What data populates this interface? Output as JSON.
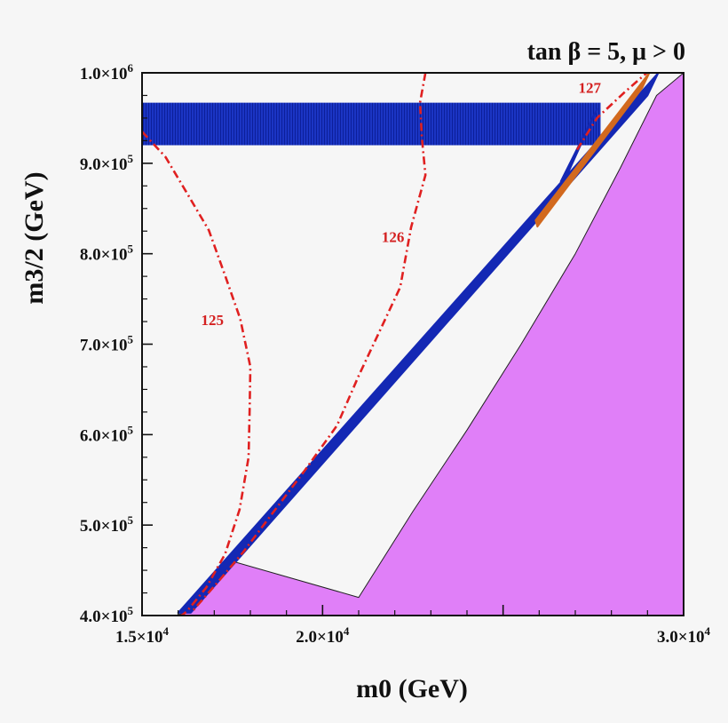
{
  "chart_data": {
    "type": "contour",
    "title": "tan β = 5,  μ > 0",
    "xlabel": "m0 (GeV)",
    "ylabel": "m3/2 (GeV)",
    "xlim": [
      15000,
      30000
    ],
    "ylim": [
      400000,
      1000000
    ],
    "x_ticks": [
      15000,
      20000,
      25000,
      30000
    ],
    "x_tick_labels": [
      "1.5×10^4",
      "2.0×10^4",
      "",
      "3.0×10^4"
    ],
    "y_ticks": [
      400000,
      500000,
      600000,
      700000,
      800000,
      900000,
      1000000
    ],
    "y_tick_labels": [
      "4.0×10^5",
      "5.0×10^5",
      "6.0×10^5",
      "7.0×10^5",
      "8.0×10^5",
      "9.0×10^5",
      "1.0×10^6"
    ],
    "colors": {
      "excluded_region": "#e07ff8",
      "blue_region": "#1428b4",
      "higgs_contour": "#e02020",
      "orange_strip": "#d2691e",
      "background": "#f6f6f6"
    },
    "regions": [
      {
        "name": "excluded",
        "polygon": [
          [
            15950,
            400000
          ],
          [
            30000,
            400000
          ],
          [
            30000,
            1000000
          ],
          [
            29250,
            975000
          ],
          [
            28250,
            895000
          ],
          [
            27000,
            800000
          ],
          [
            25500,
            700000
          ],
          [
            24000,
            605000
          ],
          [
            22500,
            515000
          ],
          [
            21000,
            420000
          ],
          [
            17500,
            460000
          ],
          [
            16800,
            425000
          ],
          [
            16300,
            405000
          ]
        ]
      },
      {
        "name": "blue-band",
        "polygon": [
          [
            15000,
            920000
          ],
          [
            27700,
            920000
          ],
          [
            27700,
            967000
          ],
          [
            15000,
            967000
          ]
        ]
      },
      {
        "name": "blue-strip",
        "polygon": [
          [
            16000,
            403000
          ],
          [
            29300,
            1000000
          ],
          [
            29000,
            975000
          ],
          [
            16350,
            403000
          ]
        ]
      },
      {
        "name": "blue-diagonal",
        "polygon": [
          [
            27100,
            920000
          ],
          [
            26600,
            880000
          ],
          [
            26750,
            885000
          ],
          [
            27600,
            960000
          ]
        ]
      },
      {
        "name": "orange-strip",
        "polygon": [
          [
            25900,
            837000
          ],
          [
            29050,
            1000000
          ],
          [
            28850,
            983000
          ],
          [
            25950,
            830000
          ]
        ]
      }
    ],
    "contours": [
      {
        "label": "125",
        "label_x": 16950,
        "label_y": 727000,
        "points": [
          [
            15000,
            935000
          ],
          [
            15650,
            907000
          ],
          [
            16200,
            870000
          ],
          [
            16850,
            826000
          ],
          [
            17300,
            776000
          ],
          [
            17720,
            728000
          ],
          [
            18000,
            675000
          ],
          [
            17980,
            628000
          ],
          [
            17950,
            575000
          ],
          [
            17700,
            517000
          ],
          [
            17300,
            468000
          ],
          [
            16780,
            431000
          ],
          [
            16250,
            405000
          ],
          [
            16100,
            400000
          ]
        ]
      },
      {
        "label": "126",
        "label_x": 21950,
        "label_y": 819000,
        "points": [
          [
            22850,
            1000000
          ],
          [
            22700,
            967000
          ],
          [
            22750,
            928000
          ],
          [
            22850,
            887000
          ],
          [
            22650,
            858000
          ],
          [
            22450,
            829000
          ],
          [
            22300,
            796000
          ],
          [
            22150,
            763000
          ],
          [
            21600,
            716000
          ],
          [
            21000,
            665000
          ],
          [
            20400,
            610000
          ],
          [
            19500,
            560000
          ],
          [
            18500,
            507000
          ],
          [
            17800,
            470000
          ],
          [
            17100,
            437000
          ],
          [
            16400,
            405000
          ]
        ]
      },
      {
        "label": "127",
        "label_x": 27400,
        "label_y": 984000,
        "points": [
          [
            27050,
            915000
          ],
          [
            27600,
            950000
          ],
          [
            28350,
            978000
          ],
          [
            28980,
            1000000
          ]
        ]
      }
    ]
  }
}
